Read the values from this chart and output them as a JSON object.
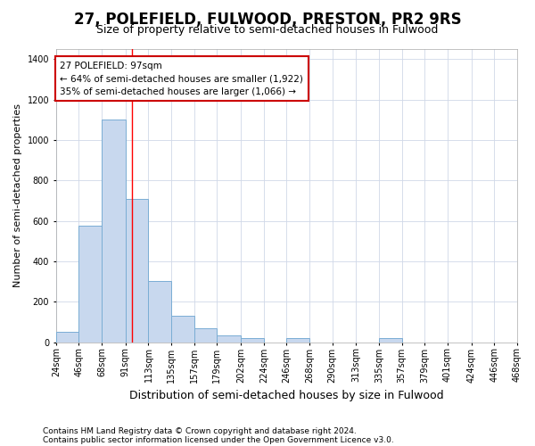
{
  "title1": "27, POLEFIELD, FULWOOD, PRESTON, PR2 9RS",
  "title2": "Size of property relative to semi-detached houses in Fulwood",
  "xlabel": "Distribution of semi-detached houses by size in Fulwood",
  "ylabel": "Number of semi-detached properties",
  "footnote1": "Contains HM Land Registry data © Crown copyright and database right 2024.",
  "footnote2": "Contains public sector information licensed under the Open Government Licence v3.0.",
  "annotation_title": "27 POLEFIELD: 97sqm",
  "annotation_line1": "← 64% of semi-detached houses are smaller (1,922)",
  "annotation_line2": "35% of semi-detached houses are larger (1,066) →",
  "property_sqm": 97,
  "bar_left_edges": [
    24,
    46,
    68,
    91,
    113,
    135,
    157,
    179,
    202,
    224,
    246,
    268,
    290,
    313,
    335,
    357,
    379,
    401,
    424,
    446
  ],
  "bar_widths": [
    22,
    22,
    23,
    22,
    22,
    22,
    22,
    23,
    22,
    22,
    22,
    22,
    23,
    22,
    22,
    22,
    22,
    23,
    22,
    22
  ],
  "bar_heights": [
    50,
    575,
    1100,
    710,
    305,
    130,
    70,
    35,
    20,
    0,
    20,
    0,
    0,
    0,
    20,
    0,
    0,
    0,
    0,
    0
  ],
  "bar_color": "#c8d8ee",
  "bar_edge_color": "#7aadd4",
  "red_line_x": 97,
  "ylim": [
    0,
    1450
  ],
  "yticks": [
    0,
    200,
    400,
    600,
    800,
    1000,
    1200,
    1400
  ],
  "bg_color": "#ffffff",
  "plot_bg_color": "#ffffff",
  "grid_color": "#d0d8e8",
  "annotation_box_color": "#ffffff",
  "annotation_box_edge_color": "#cc0000",
  "x_tick_labels": [
    "24sqm",
    "46sqm",
    "68sqm",
    "91sqm",
    "113sqm",
    "135sqm",
    "157sqm",
    "179sqm",
    "202sqm",
    "224sqm",
    "246sqm",
    "268sqm",
    "290sqm",
    "313sqm",
    "335sqm",
    "357sqm",
    "379sqm",
    "401sqm",
    "424sqm",
    "446sqm",
    "468sqm"
  ],
  "title1_fontsize": 12,
  "title2_fontsize": 9,
  "ylabel_fontsize": 8,
  "xlabel_fontsize": 9,
  "annot_fontsize": 7.5,
  "tick_fontsize": 7,
  "footnote_fontsize": 6.5
}
